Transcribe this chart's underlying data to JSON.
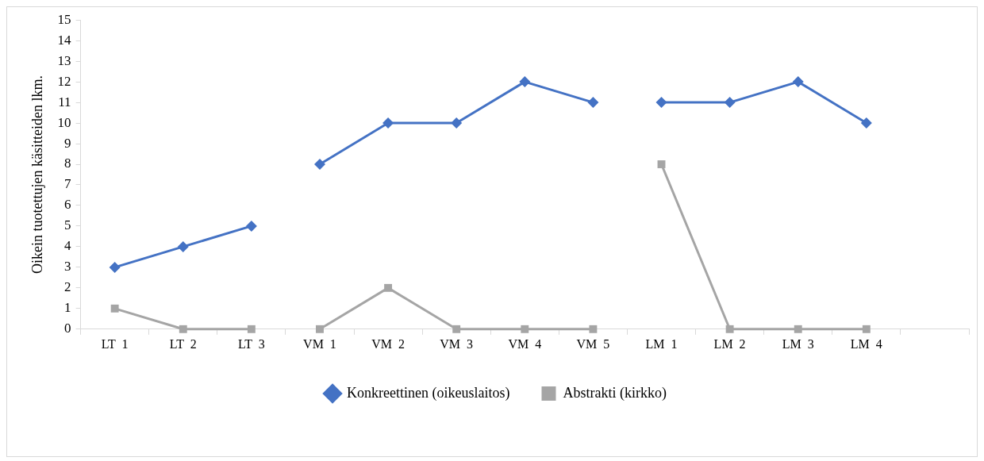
{
  "chart_data": {
    "type": "line",
    "ylabel": "Oikein tuotettujen käsitteiden lkm.",
    "categories": [
      "LT  1",
      "LT  2",
      "LT  3",
      "VM  1",
      "VM  2",
      "VM  3",
      "VM  4",
      "VM  5",
      "LM  1",
      "LM  2",
      "LM  3",
      "LM  4",
      null
    ],
    "series": [
      {
        "name": "Konkreettinen (oikeuslaitos)",
        "color": "#4472c4",
        "marker": "diamond",
        "values": [
          3,
          4,
          5,
          null,
          null,
          null,
          null,
          null,
          null,
          null,
          null,
          null,
          null
        ]
      },
      {
        "color": "#4472c4",
        "marker": "diamond",
        "values": [
          null,
          null,
          null,
          8,
          10,
          10,
          12,
          11,
          null,
          null,
          null,
          null,
          null
        ]
      },
      {
        "color": "#4472c4",
        "marker": "diamond",
        "values": [
          null,
          null,
          null,
          null,
          null,
          null,
          null,
          null,
          11,
          11,
          12,
          10,
          null
        ]
      },
      {
        "name": "Abstrakti (kirkko)",
        "color": "#a5a5a5",
        "marker": "square",
        "values": [
          1,
          0,
          0,
          null,
          null,
          null,
          null,
          null,
          null,
          null,
          null,
          null,
          null
        ]
      },
      {
        "color": "#a5a5a5",
        "marker": "square",
        "values": [
          null,
          null,
          null,
          0,
          2,
          0,
          0,
          0,
          null,
          null,
          null,
          null,
          null
        ]
      },
      {
        "color": "#a5a5a5",
        "marker": "square",
        "values": [
          null,
          null,
          null,
          null,
          null,
          null,
          null,
          null,
          8,
          0,
          0,
          0,
          null
        ]
      }
    ],
    "ylim": [
      0,
      15
    ],
    "yticks": [
      0,
      1,
      2,
      3,
      4,
      5,
      6,
      7,
      8,
      9,
      10,
      11,
      12,
      13,
      14,
      15
    ],
    "grid": false,
    "legend": "bottom",
    "line_style": "solid"
  }
}
